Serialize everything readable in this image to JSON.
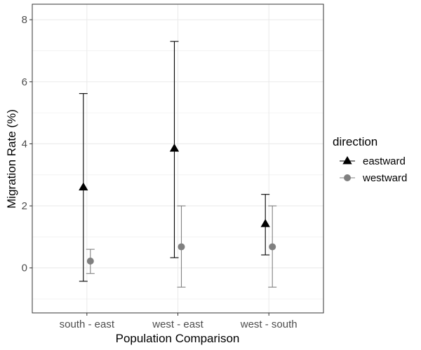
{
  "chart_data": {
    "type": "scatter",
    "xlabel": "Population Comparison",
    "ylabel": "Migration Rate (%)",
    "categories": [
      "south - east",
      "west - east",
      "west - south"
    ],
    "ylim": [
      -1.45,
      8.5
    ],
    "yticks": [
      0,
      2,
      4,
      6,
      8
    ],
    "grid": true,
    "legend": {
      "title": "direction",
      "position": "right"
    },
    "series": [
      {
        "name": "eastward",
        "marker": "triangle",
        "color": "#000000",
        "values": [
          2.6,
          3.85,
          1.42
        ],
        "lower": [
          -0.43,
          0.33,
          0.42
        ],
        "upper": [
          5.62,
          7.3,
          2.37
        ]
      },
      {
        "name": "westward",
        "marker": "circle",
        "color": "#808080",
        "values": [
          0.22,
          0.68,
          0.68
        ],
        "lower": [
          -0.18,
          -0.62,
          -0.62
        ],
        "upper": [
          0.6,
          2.0,
          2.0
        ]
      }
    ]
  }
}
